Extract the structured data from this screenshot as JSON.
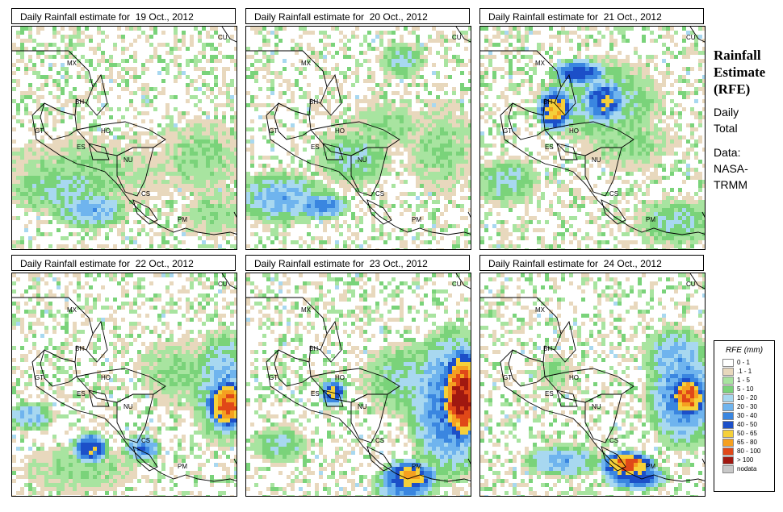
{
  "panels": [
    {
      "title": "Daily Rainfall estimate for  19 Oct., 2012",
      "seed": 19,
      "blobs": [
        [
          60,
          200,
          55,
          28,
          3
        ],
        [
          95,
          225,
          40,
          20,
          4
        ],
        [
          80,
          180,
          80,
          40,
          2
        ],
        [
          230,
          160,
          45,
          40,
          2
        ],
        [
          160,
          180,
          40,
          40,
          1
        ],
        [
          250,
          230,
          35,
          25,
          2
        ]
      ]
    },
    {
      "title": "Daily Rainfall estimate for  20 Oct., 2012",
      "seed": 20,
      "blobs": [
        [
          40,
          210,
          50,
          28,
          4
        ],
        [
          90,
          220,
          30,
          15,
          5
        ],
        [
          130,
          160,
          40,
          30,
          3
        ],
        [
          170,
          120,
          40,
          25,
          2
        ],
        [
          240,
          150,
          35,
          50,
          2
        ],
        [
          190,
          40,
          25,
          20,
          3
        ]
      ]
    },
    {
      "title": "Daily Rainfall estimate for  21 Oct., 2012",
      "seed": 21,
      "blobs": [
        [
          120,
          55,
          30,
          15,
          6
        ],
        [
          150,
          90,
          25,
          25,
          6
        ],
        [
          90,
          100,
          20,
          25,
          7
        ],
        [
          150,
          90,
          60,
          45,
          3
        ],
        [
          30,
          190,
          35,
          25,
          3
        ],
        [
          240,
          240,
          45,
          25,
          3
        ],
        [
          180,
          140,
          50,
          30,
          2
        ]
      ]
    },
    {
      "title": "Daily Rainfall estimate for  22 Oct., 2012",
      "seed": 22,
      "blobs": [
        [
          265,
          160,
          25,
          30,
          8
        ],
        [
          260,
          140,
          35,
          60,
          4
        ],
        [
          20,
          175,
          25,
          15,
          4
        ],
        [
          95,
          215,
          20,
          18,
          6
        ],
        [
          160,
          215,
          20,
          15,
          5
        ],
        [
          80,
          240,
          60,
          25,
          2
        ],
        [
          200,
          120,
          40,
          35,
          2
        ]
      ]
    },
    {
      "title": "Daily Rainfall estimate for  23 Oct., 2012",
      "seed": 23,
      "blobs": [
        [
          265,
          150,
          25,
          55,
          9
        ],
        [
          250,
          160,
          45,
          80,
          5
        ],
        [
          200,
          250,
          30,
          18,
          7
        ],
        [
          195,
          260,
          35,
          20,
          5
        ],
        [
          105,
          145,
          15,
          15,
          6
        ],
        [
          40,
          210,
          30,
          20,
          3
        ],
        [
          200,
          130,
          50,
          40,
          3
        ]
      ]
    },
    {
      "title": "Daily Rainfall estimate for  24 Oct., 2012",
      "seed": 24,
      "blobs": [
        [
          255,
          150,
          22,
          25,
          8
        ],
        [
          250,
          150,
          40,
          55,
          5
        ],
        [
          180,
          235,
          30,
          15,
          8
        ],
        [
          100,
          230,
          40,
          18,
          4
        ],
        [
          190,
          250,
          35,
          15,
          6
        ],
        [
          240,
          100,
          35,
          30,
          4
        ],
        [
          90,
          120,
          20,
          20,
          2
        ]
      ]
    }
  ],
  "map_labels": [
    "MX",
    "BH",
    "GT",
    "HO",
    "ES",
    "NU",
    "CS",
    "PM",
    "CU"
  ],
  "sidebar": {
    "title_lines": [
      "Rainfall",
      "Estimate",
      "(RFE)"
    ],
    "period_lines": [
      "Daily",
      "Total"
    ],
    "source_lines": [
      "Data:",
      "NASA-",
      "TRMM"
    ]
  },
  "legend": {
    "title": "RFE (mm)",
    "items": [
      {
        "label": "0 - 1",
        "color": "#ffffff"
      },
      {
        "label": ".1 - 1",
        "color": "#e8d8bd"
      },
      {
        "label": "1 - 5",
        "color": "#a8e4a0"
      },
      {
        "label": "5 - 10",
        "color": "#7ad37a"
      },
      {
        "label": "10 - 20",
        "color": "#a8d8f0"
      },
      {
        "label": "20 - 30",
        "color": "#6fb4ee"
      },
      {
        "label": "30 - 40",
        "color": "#3a86e0"
      },
      {
        "label": "40 - 50",
        "color": "#1c4fc8"
      },
      {
        "label": "50 - 65",
        "color": "#f5d03a"
      },
      {
        "label": "65 - 80",
        "color": "#f5a020"
      },
      {
        "label": "80 - 100",
        "color": "#e04818"
      },
      {
        "label": "> 100",
        "color": "#a01810"
      },
      {
        "label": "nodata",
        "color": "#c8c8c8"
      }
    ]
  }
}
